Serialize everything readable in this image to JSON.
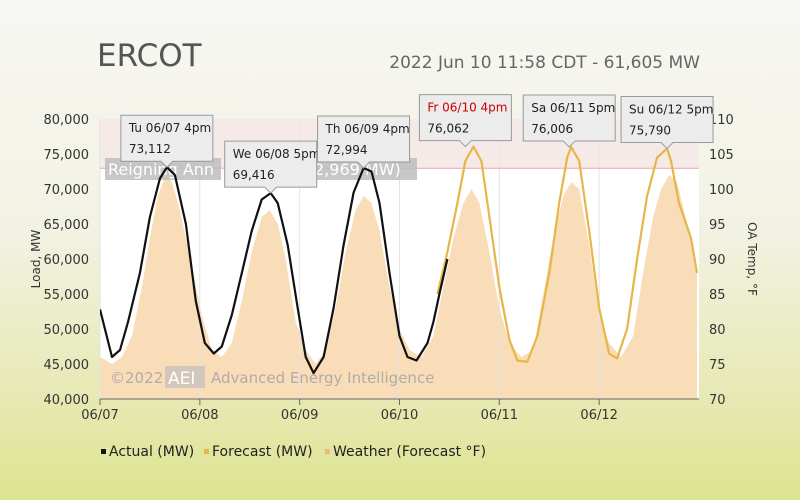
{
  "header": {
    "title": "ERCOT",
    "subtitle": "2022 Jun 10 11:58 CDT - 61,605 MW"
  },
  "colors": {
    "actual": "#111111",
    "forecast": "#e6b64a",
    "weather_fill": "#f9ddb9",
    "record_band": "#f1e3df",
    "record_line": "#e7a7a7",
    "callout_bg": "#ececec",
    "callout_border": "#999999",
    "callout_red": "#cc0000"
  },
  "chart_data": {
    "type": "line",
    "title": "ERCOT",
    "subtitle": "2022 Jun 10 11:58 CDT - 61,605 MW",
    "ylabel": "Load, MW",
    "y2label": "OA Temp, °F",
    "ylim": [
      40000,
      80000
    ],
    "y2lim": [
      70,
      110
    ],
    "xlim": [
      0,
      6.0
    ],
    "yticks": [
      "40,000",
      "45,000",
      "50,000",
      "55,000",
      "60,000",
      "65,000",
      "70,000",
      "75,000",
      "80,000"
    ],
    "y2ticks": [
      "70",
      "75",
      "80",
      "85",
      "90",
      "95",
      "100",
      "105",
      "110"
    ],
    "xticks": [
      "06/07",
      "06/08",
      "06/09",
      "06/10",
      "06/11",
      "06/12"
    ],
    "legend_position": "bottom",
    "legend": [
      "Actual (MW)",
      "Forecast (MW)",
      "Weather (Forecast °F)"
    ],
    "record": {
      "label": "Reigning Annual Peak (72,969 MW)",
      "value": 72969,
      "label_visible": "Reigning Ann",
      "label_visible_end": "2,969 MW)"
    },
    "watermark": {
      "year": "©2022",
      "logo": "AEI",
      "name": "Advanced Energy Intelligence"
    },
    "series": [
      {
        "name": "Actual (MW)",
        "x": [
          0.0,
          0.12,
          0.2,
          0.28,
          0.4,
          0.5,
          0.6,
          0.67,
          0.75,
          0.86,
          0.96,
          1.05,
          1.14,
          1.22,
          1.32,
          1.42,
          1.52,
          1.62,
          1.71,
          1.78,
          1.88,
          1.98,
          2.06,
          2.14,
          2.24,
          2.34,
          2.44,
          2.54,
          2.64,
          2.72,
          2.8,
          2.9,
          3.0,
          3.08,
          3.17,
          3.28,
          3.34,
          3.4,
          3.48
        ],
        "y": [
          52800,
          46000,
          47000,
          51000,
          58000,
          66000,
          71500,
          73112,
          72000,
          65000,
          54000,
          48000,
          46500,
          47500,
          52000,
          58000,
          64000,
          68500,
          69416,
          68000,
          62000,
          53000,
          46000,
          43700,
          46000,
          53000,
          62000,
          69500,
          72994,
          72500,
          68000,
          58000,
          49000,
          46000,
          45500,
          48000,
          51000,
          55000,
          60000
        ]
      },
      {
        "name": "Forecast (MW)",
        "x": [
          3.38,
          3.48,
          3.58,
          3.66,
          3.74,
          3.82,
          3.9,
          4.0,
          4.1,
          4.18,
          4.28,
          4.38,
          4.5,
          4.6,
          4.68,
          4.72,
          4.8,
          4.9,
          5.0,
          5.1,
          5.18,
          5.28,
          5.38,
          5.48,
          5.58,
          5.68,
          5.72,
          5.8,
          5.92,
          5.98
        ],
        "y": [
          55000,
          61000,
          68000,
          74000,
          76062,
          74000,
          66000,
          56000,
          48500,
          45500,
          45300,
          49000,
          58000,
          68000,
          74500,
          76006,
          74000,
          64000,
          53000,
          46500,
          45800,
          50000,
          60000,
          69000,
          74500,
          75790,
          74000,
          68000,
          63000,
          58000
        ]
      },
      {
        "name": "Weather (Forecast °F)",
        "x": [
          0.0,
          0.12,
          0.22,
          0.32,
          0.42,
          0.5,
          0.58,
          0.66,
          0.72,
          0.8,
          0.92,
          1.02,
          1.12,
          1.22,
          1.32,
          1.42,
          1.52,
          1.62,
          1.7,
          1.78,
          1.86,
          1.96,
          2.06,
          2.16,
          2.26,
          2.36,
          2.46,
          2.56,
          2.64,
          2.72,
          2.8,
          2.9,
          3.0,
          3.1,
          3.22,
          3.34,
          3.44,
          3.54,
          3.64,
          3.72,
          3.8,
          3.9,
          4.0,
          4.1,
          4.22,
          4.34,
          4.44,
          4.54,
          4.64,
          4.72,
          4.8,
          4.9,
          5.0,
          5.1,
          5.22,
          5.34,
          5.44,
          5.54,
          5.62,
          5.7,
          5.78,
          5.9,
          5.98
        ],
        "y": [
          76,
          75,
          76,
          79,
          86,
          93,
          99,
          102,
          101,
          97,
          89,
          82,
          77,
          76,
          78,
          84,
          91,
          96,
          97,
          95,
          90,
          81,
          77,
          75,
          77,
          83,
          91,
          97,
          99,
          98,
          94,
          86,
          80,
          77,
          76,
          79,
          86,
          93,
          98,
          100,
          98,
          91,
          83,
          78,
          76,
          77,
          85,
          93,
          99,
          101,
          100,
          92,
          82,
          78,
          76,
          79,
          88,
          96,
          100,
          102,
          101,
          94,
          88
        ]
      }
    ],
    "callouts": [
      {
        "label": "Tu 06/07 4pm",
        "value": "73,112",
        "x": 0.67,
        "y": 73112,
        "highlight": false
      },
      {
        "label": "We 06/08 5pm",
        "value": "69,416",
        "x": 1.71,
        "y": 69416,
        "highlight": false
      },
      {
        "label": "Th 06/09 4pm",
        "value": "72,994",
        "x": 2.64,
        "y": 72994,
        "highlight": false
      },
      {
        "label": "Fr 06/10 4pm",
        "value": "76,062",
        "x": 3.66,
        "y": 76062,
        "highlight": true
      },
      {
        "label": "Sa 06/11 5pm",
        "value": "76,006",
        "x": 4.7,
        "y": 76006,
        "highlight": false
      },
      {
        "label": "Su 06/12 5pm",
        "value": "75,790",
        "x": 5.68,
        "y": 75790,
        "highlight": false
      }
    ]
  }
}
